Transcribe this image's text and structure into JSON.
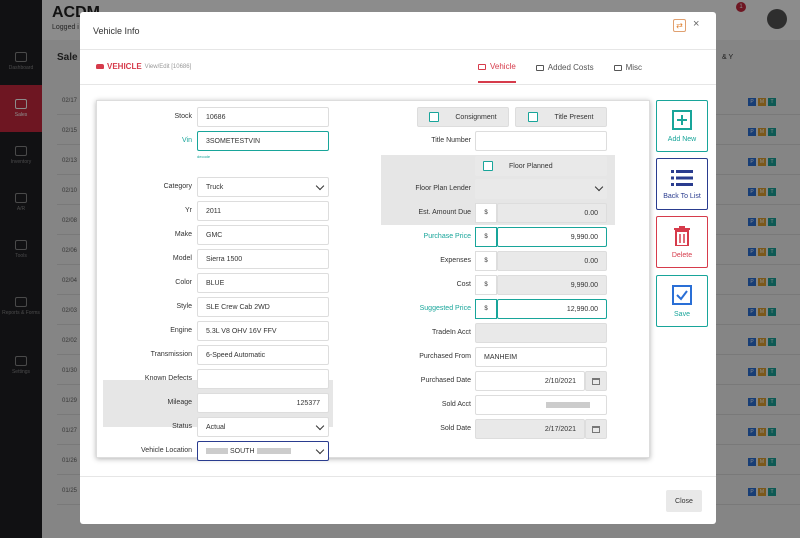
{
  "app": {
    "brand": "ACDM",
    "logged_in": "Logged i",
    "sidebar": [
      "Dashboard",
      "Sales",
      "Inventory",
      "A/R",
      "Tools",
      "Reports & Forms",
      "Settings"
    ],
    "bg_heading": "Sale",
    "bg_dates": [
      "02/17",
      "02/15",
      "02/13",
      "02/10",
      "02/08",
      "02/06",
      "02/04",
      "02/03",
      "02/02",
      "01/30",
      "01/29",
      "01/27",
      "01/26",
      "01/25"
    ],
    "bg_badges": [
      "P",
      "M",
      "T"
    ],
    "bg_right": "& Y",
    "notif_count": "1"
  },
  "modal": {
    "title": "Vehicle Info",
    "header_icon": "⇄",
    "close_icon": "×",
    "tag": {
      "label": "VEHICLE",
      "sub": "View/Edit [10686]"
    },
    "tabs": [
      "Vehicle",
      "Added Costs",
      "Misc"
    ],
    "left": {
      "stock": {
        "label": "Stock",
        "value": "10686"
      },
      "vin": {
        "label": "Vin",
        "value": "3SOMETESTVIN",
        "hint": "decode"
      },
      "category": {
        "label": "Category",
        "value": "Truck"
      },
      "yr": {
        "label": "Yr",
        "value": "2011"
      },
      "make": {
        "label": "Make",
        "value": "GMC"
      },
      "model": {
        "label": "Model",
        "value": "Sierra 1500"
      },
      "color": {
        "label": "Color",
        "value": "BLUE"
      },
      "style": {
        "label": "Style",
        "value": "SLE Crew Cab 2WD"
      },
      "engine": {
        "label": "Engine",
        "value": "5.3L V8 OHV 16V FFV"
      },
      "transmission": {
        "label": "Transmission",
        "value": "6-Speed Automatic"
      },
      "known_defects": {
        "label": "Known Defects",
        "value": ""
      },
      "mileage": {
        "label": "Mileage",
        "value": "125377"
      },
      "status": {
        "label": "Status",
        "value": "Actual"
      },
      "location": {
        "label": "Vehicle Location",
        "value": "SOUTH"
      }
    },
    "right": {
      "consignment": "Consignment",
      "title_present": "Title Present",
      "title_number": {
        "label": "Title Number",
        "value": ""
      },
      "floor_planned": "Floor Planned",
      "floor_plan_lender": {
        "label": "Floor Plan Lender",
        "value": ""
      },
      "est_amount_due": {
        "label": "Est. Amount Due",
        "value": "0.00"
      },
      "purchase_price": {
        "label": "Purchase Price",
        "value": "9,990.00"
      },
      "expenses": {
        "label": "Expenses",
        "value": "0.00"
      },
      "cost": {
        "label": "Cost",
        "value": "9,990.00"
      },
      "suggested_price": {
        "label": "Suggested Price",
        "value": "12,990.00"
      },
      "tradein_acct": {
        "label": "TradeIn Acct",
        "value": ""
      },
      "purchased_from": {
        "label": "Purchased From",
        "value": "MANHEIM"
      },
      "purchased_date": {
        "label": "Purchased Date",
        "value": "2/10/2021"
      },
      "sold_acct": {
        "label": "Sold Acct",
        "value": ""
      },
      "sold_date": {
        "label": "Sold Date",
        "value": "2/17/2021"
      },
      "currency": "$"
    },
    "actions": {
      "add_new": "Add New",
      "back_to_list": "Back To List",
      "delete": "Delete",
      "save": "Save",
      "close": "Close"
    },
    "colors": {
      "accent": "#18a59a",
      "brand": "#d63b4b",
      "navy": "#2a3c8f"
    }
  }
}
